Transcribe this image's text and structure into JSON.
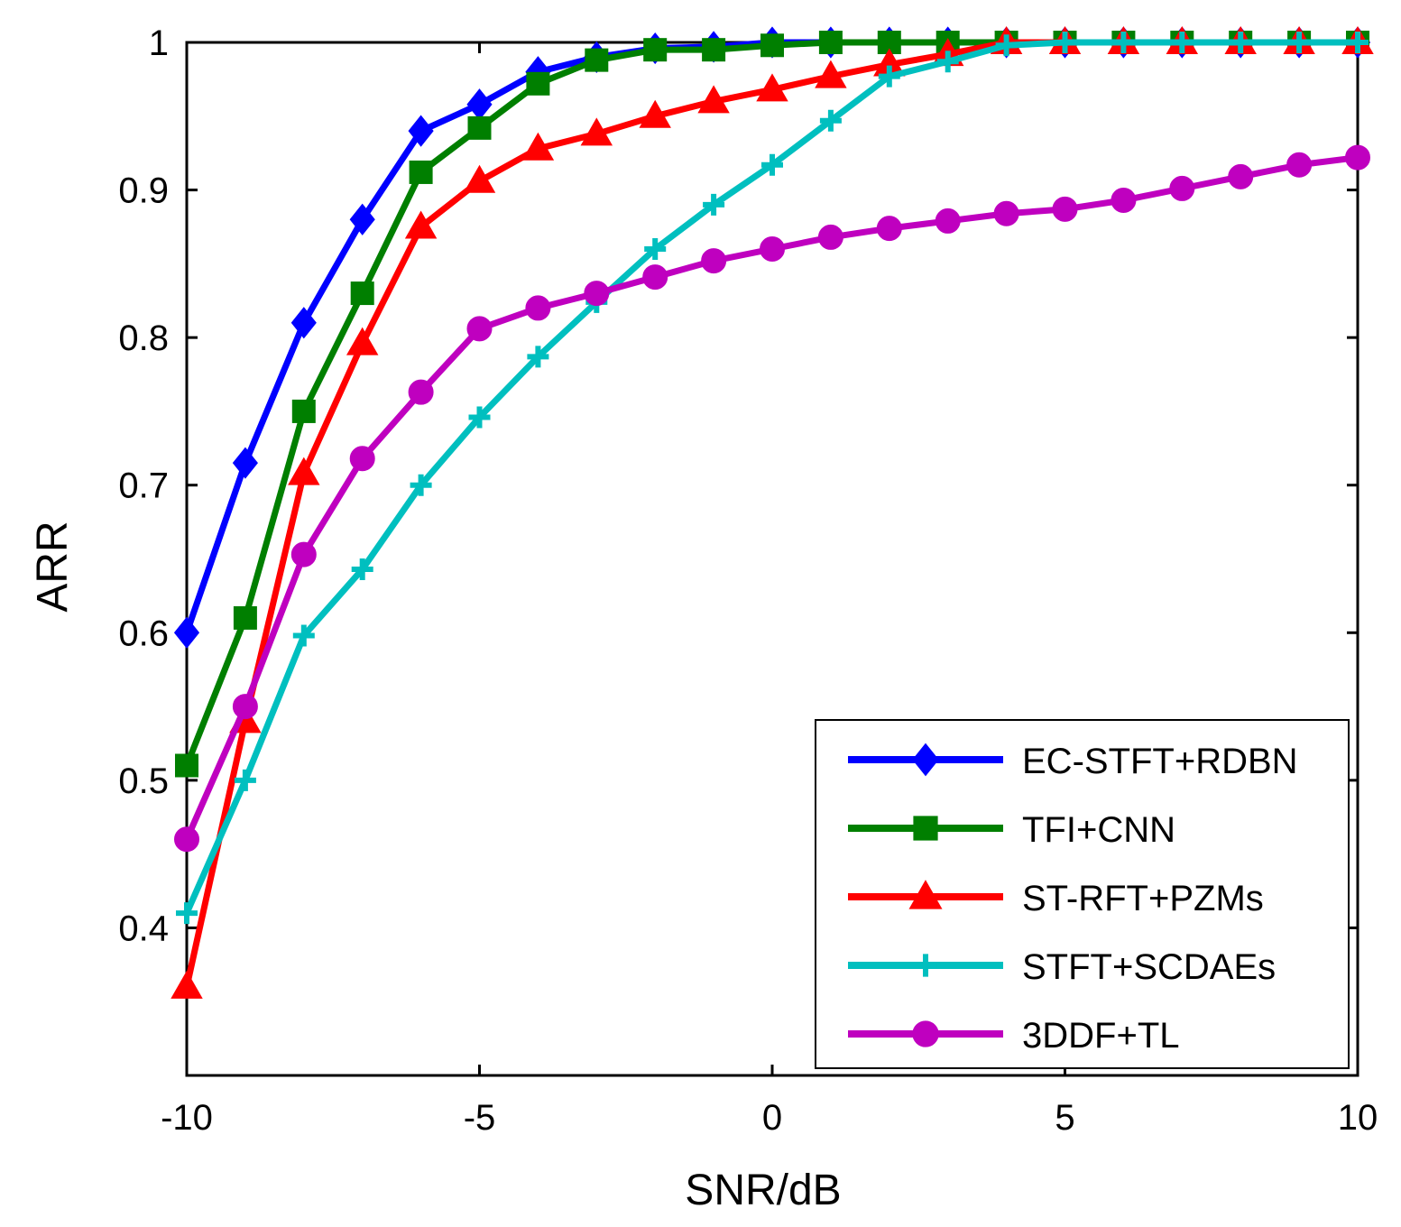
{
  "chart_data": {
    "type": "line",
    "title": "",
    "xlabel": "SNR/dB",
    "ylabel": "ARR",
    "xlim": [
      -10,
      10
    ],
    "ylim": [
      0.3,
      1.0
    ],
    "xticks": [
      -10,
      -5,
      0,
      5,
      10
    ],
    "yticks": [
      0.4,
      0.5,
      0.6,
      0.7,
      0.8,
      0.9,
      1
    ],
    "xtick_labels": [
      "-10",
      "-5",
      "0",
      "5",
      "10"
    ],
    "ytick_labels": [
      "0.4",
      "0.5",
      "0.6",
      "0.7",
      "0.8",
      "0.9",
      "1"
    ],
    "grid": false,
    "legend_position": "bottom-right",
    "x": [
      -10,
      -9,
      -8,
      -7,
      -6,
      -5,
      -4,
      -3,
      -2,
      -1,
      0,
      1,
      2,
      3,
      4,
      5,
      6,
      7,
      8,
      9,
      10
    ],
    "series": [
      {
        "name": "EC-STFT+RDBN",
        "color": "#0000ff",
        "marker": "diamond",
        "values": [
          0.6,
          0.715,
          0.81,
          0.88,
          0.94,
          0.958,
          0.98,
          0.99,
          0.996,
          0.997,
          1.0,
          1.0,
          1.0,
          1.0,
          1.0,
          1.0,
          1.0,
          1.0,
          1.0,
          1.0,
          1.0
        ]
      },
      {
        "name": "TFI+CNN",
        "color": "#007f00",
        "marker": "square",
        "values": [
          0.51,
          0.61,
          0.75,
          0.83,
          0.912,
          0.942,
          0.972,
          0.988,
          0.995,
          0.995,
          0.998,
          1.0,
          1.0,
          1.0,
          1.0,
          1.0,
          1.0,
          1.0,
          1.0,
          1.0,
          1.0
        ]
      },
      {
        "name": "ST-RFT+PZMs",
        "color": "#ff0000",
        "marker": "triangle",
        "values": [
          0.36,
          0.54,
          0.708,
          0.796,
          0.875,
          0.906,
          0.928,
          0.938,
          0.95,
          0.96,
          0.968,
          0.977,
          0.985,
          0.992,
          1.0,
          1.0,
          1.0,
          1.0,
          1.0,
          1.0,
          1.0
        ]
      },
      {
        "name": "STFT+SCDAEs",
        "color": "#00bfbf",
        "marker": "plus",
        "values": [
          0.41,
          0.5,
          0.598,
          0.643,
          0.7,
          0.746,
          0.787,
          0.824,
          0.86,
          0.89,
          0.917,
          0.947,
          0.977,
          0.987,
          0.998,
          1.0,
          1.0,
          1.0,
          1.0,
          1.0,
          1.0
        ]
      },
      {
        "name": "3DDF+TL",
        "color": "#bf00bf",
        "marker": "circle",
        "values": [
          0.46,
          0.55,
          0.653,
          0.718,
          0.763,
          0.806,
          0.82,
          0.83,
          0.841,
          0.852,
          0.86,
          0.868,
          0.874,
          0.879,
          0.884,
          0.887,
          0.893,
          0.901,
          0.909,
          0.917,
          0.922
        ]
      }
    ]
  }
}
